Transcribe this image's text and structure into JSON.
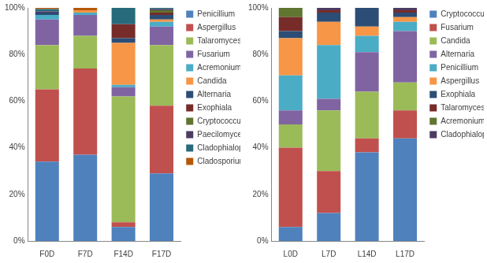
{
  "chart_data": [
    {
      "type": "bar",
      "stacked": true,
      "grid": false,
      "legend": "right",
      "categories": [
        "F0D",
        "F7D",
        "F14D",
        "F17D"
      ],
      "ylim": [
        0,
        100
      ],
      "yticks": [
        {
          "value": 0,
          "label": "0%"
        },
        {
          "value": 20,
          "label": "20%"
        },
        {
          "value": 40,
          "label": "40%"
        },
        {
          "value": 60,
          "label": "60%"
        },
        {
          "value": 80,
          "label": "80%"
        },
        {
          "value": 100,
          "label": "100%"
        }
      ],
      "series": [
        {
          "name": "Penicillium",
          "color": "#4f81bd",
          "values": [
            34,
            37,
            6,
            29
          ]
        },
        {
          "name": "Aspergillus",
          "color": "#c0504d",
          "values": [
            31,
            37,
            2,
            29
          ]
        },
        {
          "name": "Talaromyces",
          "color": "#9bbb59",
          "values": [
            19,
            14,
            54,
            26
          ]
        },
        {
          "name": "Fusarium",
          "color": "#8064a2",
          "values": [
            11,
            9,
            4,
            8
          ]
        },
        {
          "name": "Acremonium",
          "color": "#4bacc6",
          "values": [
            2,
            1,
            1,
            2
          ]
        },
        {
          "name": "Candida",
          "color": "#f79646",
          "values": [
            0,
            1,
            18,
            1
          ]
        },
        {
          "name": "Alternaria",
          "color": "#2c4d75",
          "values": [
            1,
            0,
            2,
            2
          ]
        },
        {
          "name": "Exophiala",
          "color": "#772c2a",
          "values": [
            0,
            0,
            6,
            1
          ]
        },
        {
          "name": "Cryptococcus",
          "color": "#5f7530",
          "values": [
            0,
            0,
            0,
            1
          ]
        },
        {
          "name": "Paecilomyces",
          "color": "#4d3b62",
          "values": [
            0.5,
            0,
            0,
            0.5
          ]
        },
        {
          "name": "Cladophialophora",
          "color": "#276a7c",
          "values": [
            1,
            0,
            7,
            0.5
          ]
        },
        {
          "name": "Cladosporium",
          "color": "#b65708",
          "values": [
            0.5,
            1,
            0,
            0
          ]
        }
      ]
    },
    {
      "type": "bar",
      "stacked": true,
      "grid": false,
      "legend": "right",
      "categories": [
        "L0D",
        "L7D",
        "L14D",
        "L17D"
      ],
      "ylim": [
        0,
        100
      ],
      "yticks": [
        {
          "value": 0,
          "label": "0%"
        },
        {
          "value": 20,
          "label": "20%"
        },
        {
          "value": 40,
          "label": "40%"
        },
        {
          "value": 60,
          "label": "60%"
        },
        {
          "value": 80,
          "label": "80%"
        },
        {
          "value": 100,
          "label": "100%"
        }
      ],
      "series": [
        {
          "name": "Cryptococcus",
          "color": "#4f81bd",
          "values": [
            6,
            12,
            38,
            44
          ]
        },
        {
          "name": "Fusarium",
          "color": "#c0504d",
          "values": [
            34,
            18,
            6,
            12
          ]
        },
        {
          "name": "Candida",
          "color": "#9bbb59",
          "values": [
            10,
            26,
            20,
            12
          ]
        },
        {
          "name": "Alternaria",
          "color": "#8064a2",
          "values": [
            6,
            5,
            17,
            22
          ]
        },
        {
          "name": "Penicillium",
          "color": "#4bacc6",
          "values": [
            15,
            23,
            7,
            4
          ]
        },
        {
          "name": "Aspergillus",
          "color": "#f79646",
          "values": [
            16,
            10,
            4,
            2
          ]
        },
        {
          "name": "Exophiala",
          "color": "#2c4d75",
          "values": [
            3,
            4,
            8,
            2
          ]
        },
        {
          "name": "Talaromyces",
          "color": "#772c2a",
          "values": [
            6,
            1,
            0,
            1
          ]
        },
        {
          "name": "Acremonium",
          "color": "#5f7530",
          "values": [
            4,
            0,
            0,
            0
          ]
        },
        {
          "name": "Cladophialophora",
          "color": "#4d3b62",
          "values": [
            0,
            1,
            0,
            1
          ]
        }
      ]
    }
  ]
}
